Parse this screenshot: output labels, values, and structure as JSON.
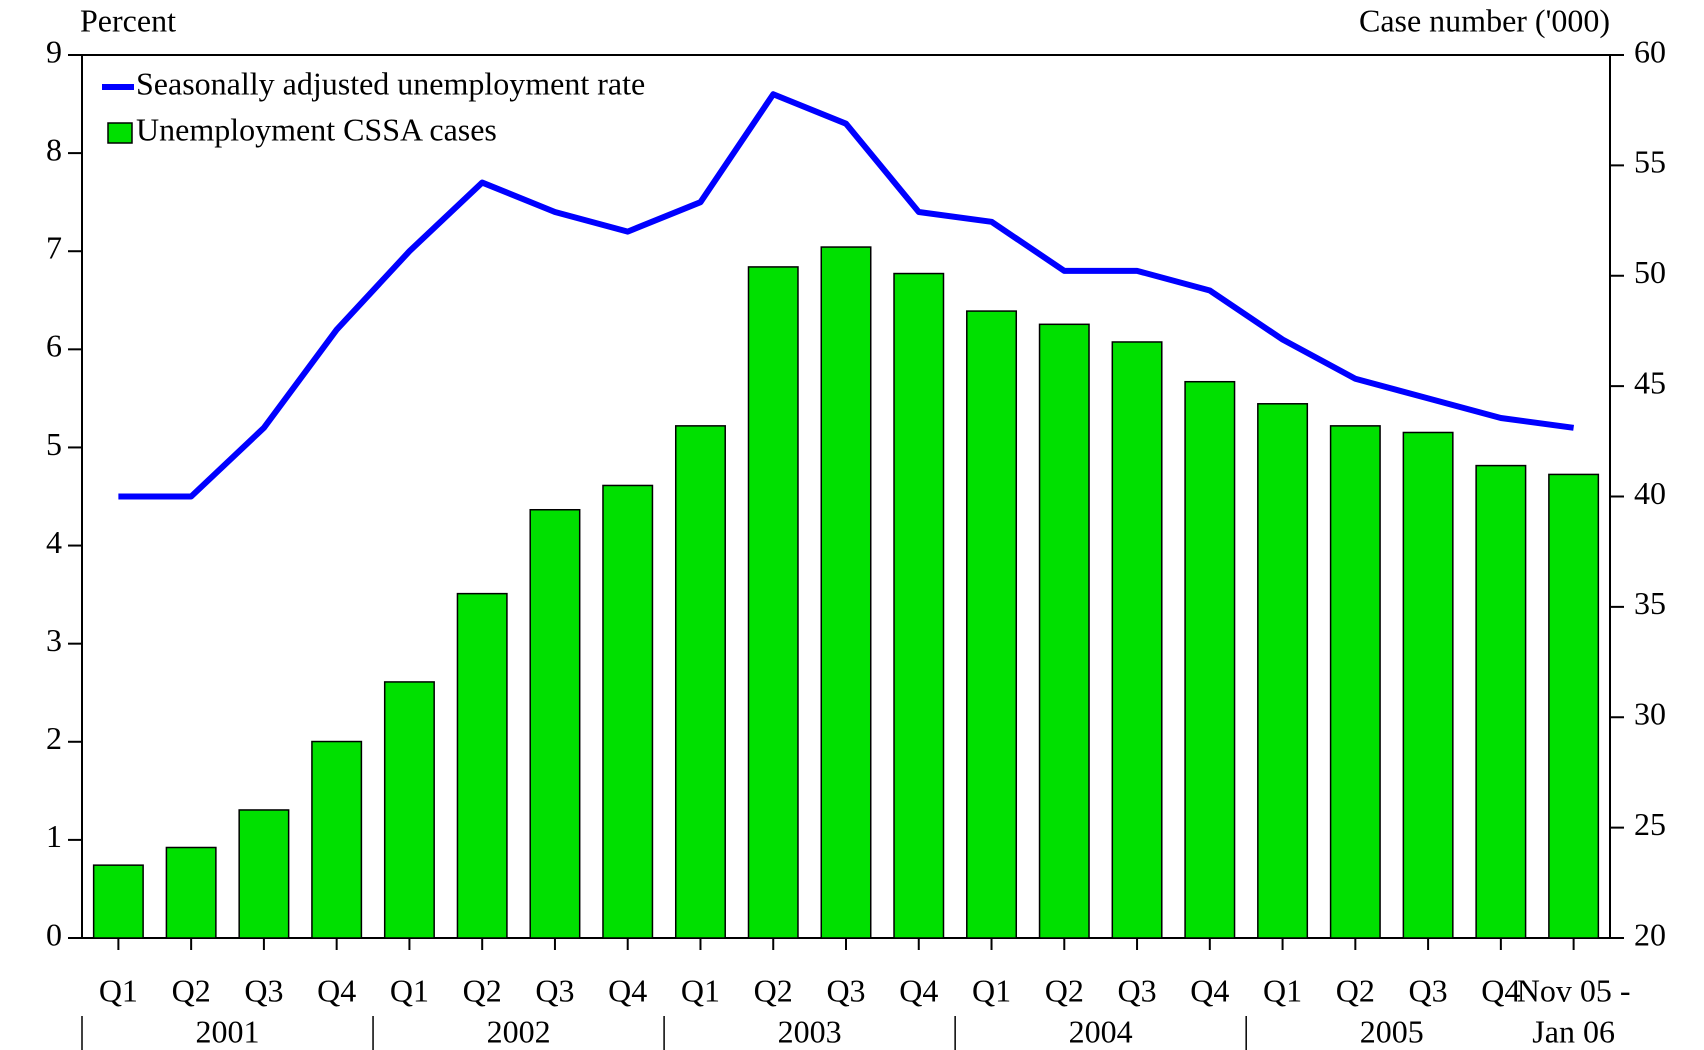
{
  "chart_data": {
    "type": "bar_line",
    "ylabel": "Percent",
    "y2label": "Case number ('000)",
    "categories": [
      "Q1",
      "Q2",
      "Q3",
      "Q4",
      "Q1",
      "Q2",
      "Q3",
      "Q4",
      "Q1",
      "Q2",
      "Q3",
      "Q4",
      "Q1",
      "Q2",
      "Q3",
      "Q4",
      "Q1",
      "Q2",
      "Q3",
      "Q4",
      "Nov 05 -"
    ],
    "year_labels": [
      "2001",
      "2002",
      "2003",
      "2004",
      "2005",
      "Jan 06"
    ],
    "series": [
      {
        "name": "Seasonally adjusted unemployment rate",
        "type": "line",
        "axis": "y",
        "color": "#0000ff",
        "values": [
          4.5,
          4.5,
          5.2,
          6.2,
          7.0,
          7.7,
          7.4,
          7.2,
          7.5,
          8.6,
          8.3,
          7.4,
          7.3,
          6.8,
          6.8,
          6.6,
          6.1,
          5.7,
          5.5,
          5.3,
          5.2
        ]
      },
      {
        "name": "Unemployment CSSA cases",
        "type": "bar",
        "axis": "y2",
        "color": "#00e000",
        "values": [
          23.3,
          24.1,
          25.8,
          28.9,
          31.6,
          35.6,
          39.4,
          40.5,
          43.2,
          50.4,
          51.3,
          50.1,
          48.4,
          47.8,
          47.0,
          45.2,
          44.2,
          43.2,
          42.9,
          41.4,
          41.0
        ]
      }
    ],
    "ylim": [
      0,
      9
    ],
    "yticks": [
      0,
      1,
      2,
      3,
      4,
      5,
      6,
      7,
      8,
      9
    ],
    "y2lim": [
      20,
      60
    ],
    "y2ticks": [
      20,
      25,
      30,
      35,
      40,
      45,
      50,
      55,
      60
    ],
    "legend": "top-left"
  }
}
